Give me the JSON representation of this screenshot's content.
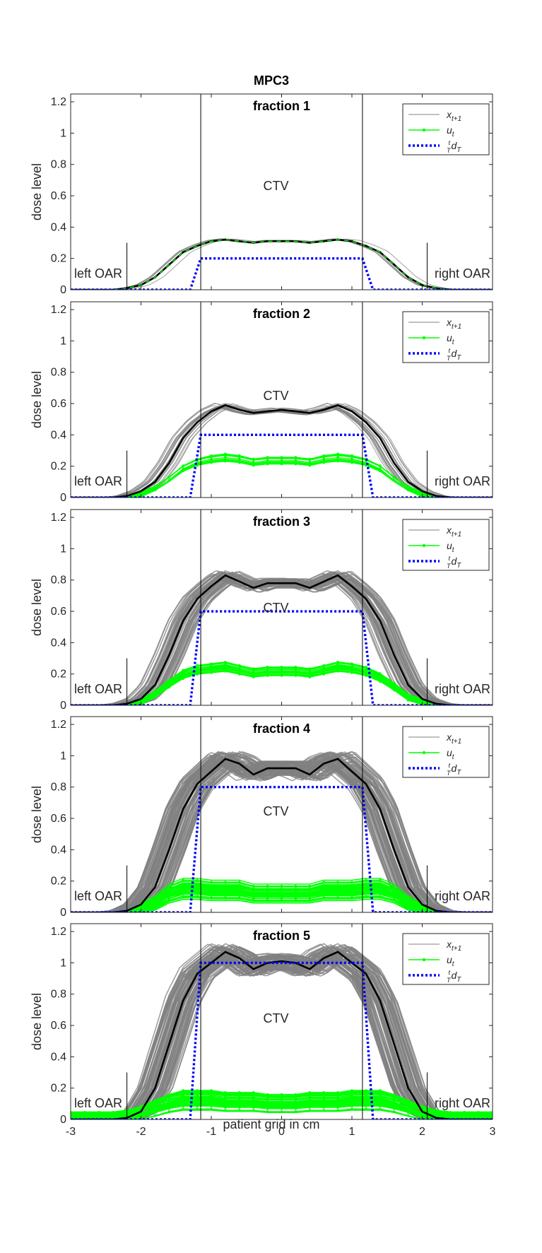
{
  "figure_title": "MPC3",
  "chart_data": {
    "type": "line",
    "xlabel": "patient grid in cm",
    "ylabel": "dose level",
    "xlim": [
      -3,
      3
    ],
    "ylim": [
      0,
      1.25
    ],
    "xticks": [
      "-3",
      "-2",
      "-1",
      "0",
      "1",
      "2",
      "3"
    ],
    "yticks": [
      "0",
      "0.2",
      "0.4",
      "0.6",
      "0.8",
      "1",
      "1.2"
    ],
    "region_labels": {
      "left": "left OAR",
      "center": "CTV",
      "right": "right OAR"
    },
    "ctv_bounds": [
      -1.15,
      1.15
    ],
    "oar_markers": [
      -2.2,
      2.07
    ],
    "legend": [
      {
        "label": "x_{t+1}",
        "display": "x",
        "sub": "t+1",
        "color": "#808080",
        "style": "solid"
      },
      {
        "label": "u_t",
        "display": "u",
        "sub": "t",
        "color": "#00ff00",
        "style": "solid-marker"
      },
      {
        "label": "(t/T) d_T",
        "display": "d",
        "sub": "T",
        "frac_num": "t",
        "frac_den": "T",
        "color": "#0000ff",
        "style": "dotted"
      }
    ],
    "colors": {
      "samples": "#808080",
      "mean": "#000000",
      "control": "#00ff00",
      "target": "#0000ff",
      "boundary": "#000000"
    },
    "x_grid": [
      -3.0,
      -2.8,
      -2.6,
      -2.4,
      -2.2,
      -2.0,
      -1.8,
      -1.6,
      -1.4,
      -1.2,
      -1.0,
      -0.8,
      -0.6,
      -0.4,
      -0.2,
      0.0,
      0.2,
      0.4,
      0.6,
      0.8,
      1.0,
      1.2,
      1.4,
      1.6,
      1.8,
      2.0,
      2.2,
      2.4,
      2.6,
      2.8,
      3.0
    ],
    "panels": [
      {
        "title": "fraction  1",
        "target_level": 0.2,
        "mean": [
          0,
          0,
          0,
          0,
          0.01,
          0.03,
          0.08,
          0.16,
          0.24,
          0.28,
          0.31,
          0.32,
          0.31,
          0.3,
          0.31,
          0.31,
          0.31,
          0.3,
          0.31,
          0.32,
          0.31,
          0.28,
          0.24,
          0.16,
          0.08,
          0.03,
          0.01,
          0,
          0,
          0,
          0
        ],
        "control": [
          0,
          0,
          0,
          0,
          0.01,
          0.03,
          0.08,
          0.16,
          0.24,
          0.28,
          0.31,
          0.32,
          0.31,
          0.3,
          0.31,
          0.31,
          0.31,
          0.3,
          0.31,
          0.32,
          0.31,
          0.28,
          0.24,
          0.16,
          0.08,
          0.03,
          0.01,
          0,
          0,
          0,
          0
        ],
        "spread": 0.02,
        "shift": 0.18,
        "n_samples": 5,
        "ctrl_spread": 0.0,
        "n_ctrl": 1
      },
      {
        "title": "fraction  2",
        "target_level": 0.4,
        "mean": [
          0,
          0,
          0,
          0,
          0.01,
          0.04,
          0.1,
          0.22,
          0.38,
          0.48,
          0.55,
          0.59,
          0.56,
          0.54,
          0.55,
          0.56,
          0.55,
          0.54,
          0.56,
          0.59,
          0.55,
          0.48,
          0.38,
          0.22,
          0.1,
          0.04,
          0.01,
          0,
          0,
          0,
          0
        ],
        "control": [
          0,
          0,
          0,
          0,
          0,
          0.02,
          0.06,
          0.12,
          0.19,
          0.23,
          0.25,
          0.26,
          0.25,
          0.23,
          0.24,
          0.24,
          0.24,
          0.23,
          0.25,
          0.26,
          0.25,
          0.23,
          0.19,
          0.12,
          0.06,
          0.02,
          0,
          0,
          0,
          0,
          0
        ],
        "spread": 0.03,
        "shift": 0.18,
        "n_samples": 22,
        "ctrl_spread": 0.03,
        "n_ctrl": 10
      },
      {
        "title": "fraction  3",
        "target_level": 0.6,
        "mean": [
          0,
          0,
          0,
          0,
          0.01,
          0.04,
          0.13,
          0.32,
          0.54,
          0.68,
          0.76,
          0.83,
          0.79,
          0.75,
          0.78,
          0.78,
          0.78,
          0.75,
          0.79,
          0.83,
          0.76,
          0.68,
          0.54,
          0.32,
          0.13,
          0.04,
          0.01,
          0,
          0,
          0,
          0
        ],
        "control": [
          0,
          0,
          0,
          0,
          0,
          0.02,
          0.07,
          0.14,
          0.2,
          0.23,
          0.24,
          0.25,
          0.23,
          0.21,
          0.22,
          0.22,
          0.22,
          0.21,
          0.23,
          0.25,
          0.24,
          0.22,
          0.18,
          0.12,
          0.05,
          0.02,
          0,
          0,
          0,
          0,
          0
        ],
        "spread": 0.04,
        "shift": 0.22,
        "n_samples": 45,
        "ctrl_spread": 0.04,
        "n_ctrl": 18
      },
      {
        "title": "fraction  4",
        "target_level": 0.8,
        "mean": [
          0,
          0,
          0,
          0,
          0.01,
          0.05,
          0.16,
          0.4,
          0.66,
          0.82,
          0.9,
          0.98,
          0.95,
          0.88,
          0.92,
          0.92,
          0.92,
          0.88,
          0.95,
          0.98,
          0.9,
          0.82,
          0.66,
          0.4,
          0.16,
          0.05,
          0.01,
          0,
          0,
          0,
          0
        ],
        "control": [
          0,
          0,
          0,
          0,
          0,
          0.02,
          0.06,
          0.12,
          0.15,
          0.15,
          0.14,
          0.14,
          0.14,
          0.12,
          0.12,
          0.12,
          0.12,
          0.12,
          0.14,
          0.14,
          0.14,
          0.15,
          0.15,
          0.12,
          0.06,
          0.02,
          0,
          0,
          0,
          0,
          0
        ],
        "spread": 0.05,
        "shift": 0.25,
        "n_samples": 80,
        "ctrl_spread": 0.07,
        "n_ctrl": 40
      },
      {
        "title": "fraction  5",
        "target_level": 1.0,
        "mean": [
          0,
          0,
          0,
          0,
          0.01,
          0.05,
          0.2,
          0.48,
          0.76,
          0.93,
          1.0,
          1.07,
          1.03,
          0.96,
          1.0,
          1.01,
          1.0,
          0.96,
          1.03,
          1.07,
          1.0,
          0.93,
          0.76,
          0.48,
          0.2,
          0.05,
          0.01,
          0,
          0,
          0,
          0
        ],
        "control": [
          0.01,
          0.01,
          0.01,
          0.01,
          0.02,
          0.04,
          0.07,
          0.1,
          0.12,
          0.12,
          0.12,
          0.11,
          0.11,
          0.11,
          0.1,
          0.1,
          0.1,
          0.11,
          0.11,
          0.11,
          0.12,
          0.12,
          0.12,
          0.1,
          0.07,
          0.04,
          0.02,
          0.01,
          0.01,
          0.01,
          0.01
        ],
        "spread": 0.05,
        "shift": 0.25,
        "n_samples": 80,
        "ctrl_spread": 0.08,
        "n_ctrl": 45
      }
    ]
  }
}
